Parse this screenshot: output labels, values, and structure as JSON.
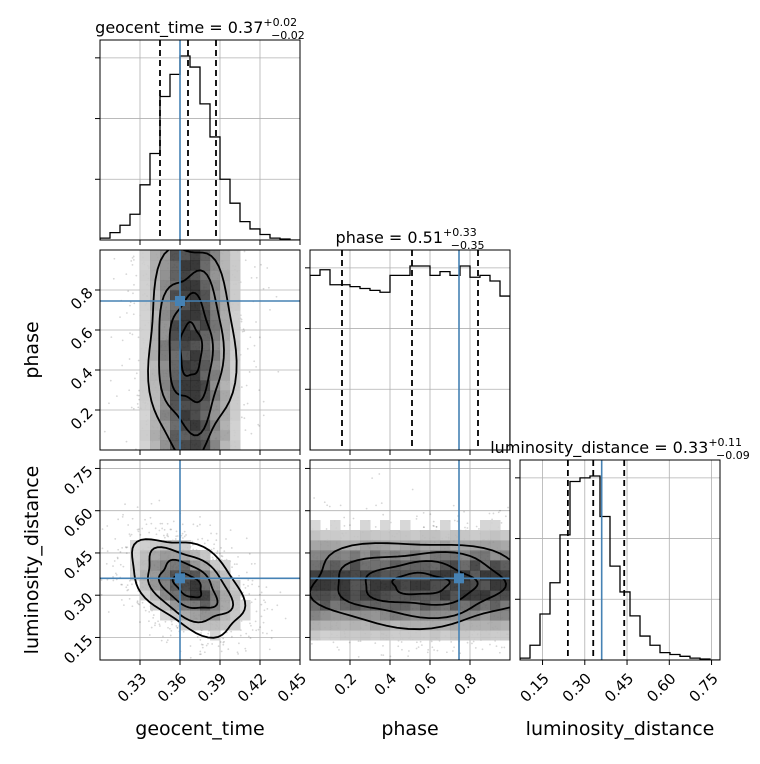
{
  "chart_data": {
    "type": "corner",
    "parameters": [
      "geocent_time",
      "phase",
      "luminosity_distance"
    ],
    "truths": {
      "geocent_time": 0.36,
      "phase": 0.745,
      "luminosity_distance": 0.36
    },
    "truth_color": "#4682b4",
    "grid": true,
    "titles": [
      {
        "param": "geocent_time",
        "text": "geocent_time = 0.37",
        "plus": "+0.02",
        "minus": "−0.02"
      },
      {
        "param": "phase",
        "text": "phase = 0.51",
        "plus": "+0.33",
        "minus": "−0.35"
      },
      {
        "param": "luminosity_distance",
        "text": "luminosity_distance = 0.33",
        "plus": "+0.11",
        "minus": "−0.09"
      }
    ],
    "axes": {
      "geocent_time": {
        "range": [
          0.3,
          0.45
        ],
        "ticks": [
          0.33,
          0.36,
          0.39,
          0.42,
          0.45
        ],
        "tick_labels": [
          "0.33",
          "0.36",
          "0.39",
          "0.42",
          "0.45"
        ]
      },
      "phase": {
        "range": [
          0.0,
          1.0
        ],
        "ticks": [
          0.2,
          0.4,
          0.6,
          0.8
        ],
        "tick_labels": [
          "0.2",
          "0.4",
          "0.6",
          "0.8"
        ]
      },
      "luminosity_distance": {
        "range": [
          0.07,
          0.78
        ],
        "ticks": [
          0.15,
          0.3,
          0.45,
          0.6,
          0.75
        ],
        "tick_labels": [
          "0.15",
          "0.30",
          "0.45",
          "0.60",
          "0.75"
        ]
      }
    },
    "histograms": {
      "geocent_time": {
        "bin_edges": [
          0.3,
          0.3075,
          0.315,
          0.3225,
          0.33,
          0.3375,
          0.345,
          0.3525,
          0.36,
          0.3675,
          0.375,
          0.3825,
          0.39,
          0.3975,
          0.405,
          0.4125,
          0.42,
          0.4275,
          0.435,
          0.4425,
          0.45
        ],
        "counts": [
          0.01,
          0.04,
          0.08,
          0.14,
          0.3,
          0.47,
          0.78,
          0.9,
          1.0,
          0.94,
          0.74,
          0.56,
          0.33,
          0.2,
          0.1,
          0.06,
          0.03,
          0.01,
          0.005,
          0.0
        ],
        "quantiles": [
          0.345,
          0.366,
          0.387
        ]
      },
      "phase": {
        "bin_edges": [
          0.0,
          0.05,
          0.1,
          0.15,
          0.2,
          0.25,
          0.3,
          0.35,
          0.4,
          0.45,
          0.5,
          0.55,
          0.6,
          0.65,
          0.7,
          0.75,
          0.8,
          0.85,
          0.9,
          0.95,
          1.0
        ],
        "counts": [
          0.93,
          0.96,
          0.88,
          0.88,
          0.87,
          0.86,
          0.85,
          0.84,
          0.93,
          0.93,
          0.98,
          0.98,
          0.93,
          0.95,
          0.93,
          0.98,
          0.92,
          0.93,
          0.9,
          0.82
        ],
        "quantiles": [
          0.16,
          0.51,
          0.84
        ]
      },
      "luminosity_distance": {
        "bin_edges": [
          0.07,
          0.1055,
          0.141,
          0.1765,
          0.212,
          0.2475,
          0.283,
          0.3185,
          0.354,
          0.3895,
          0.425,
          0.4605,
          0.496,
          0.5315,
          0.567,
          0.6025,
          0.638,
          0.6735,
          0.709,
          0.7445,
          0.78
        ],
        "counts": [
          0.01,
          0.08,
          0.25,
          0.42,
          0.68,
          0.97,
          0.99,
          1.0,
          0.78,
          0.51,
          0.37,
          0.24,
          0.13,
          0.08,
          0.04,
          0.03,
          0.02,
          0.01,
          0.005,
          0.0
        ],
        "quantiles": [
          0.24,
          0.33,
          0.44
        ]
      }
    },
    "joint": {
      "geocent_time_phase": {
        "center": [
          0.368,
          0.5
        ],
        "sigma": [
          0.018,
          0.32
        ],
        "correlation": 0.0,
        "contour_levels": [
          0.5,
          1.0,
          1.5,
          2.0
        ]
      },
      "geocent_time_luminosity_distance": {
        "center": [
          0.366,
          0.335
        ],
        "sigma": [
          0.021,
          0.085
        ],
        "correlation": -0.45,
        "contour_levels": [
          0.5,
          1.0,
          1.5,
          2.0
        ]
      },
      "phase_luminosity_distance": {
        "center": [
          0.55,
          0.34
        ],
        "sigma": [
          0.45,
          0.1
        ],
        "correlation": 0.0,
        "contour_levels": [
          0.5,
          1.0,
          1.5,
          2.0
        ]
      }
    }
  }
}
